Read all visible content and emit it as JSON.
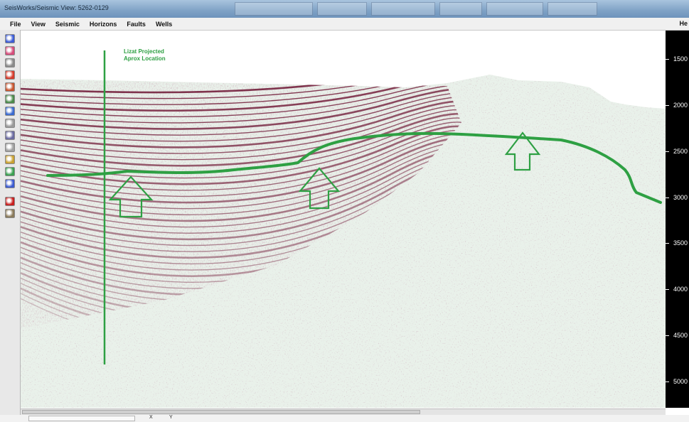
{
  "window": {
    "title": "SeisWorks/Seismic View: 5262-0129"
  },
  "menu": {
    "items": [
      "File",
      "View",
      "Seismic",
      "Horizons",
      "Faults",
      "Wells"
    ],
    "help": "He"
  },
  "toolbar": {
    "tools": [
      {
        "icon": "zoom-in-icon",
        "color": "#3b5bd6"
      },
      {
        "icon": "zoom-out-icon",
        "color": "#d64b7a"
      },
      {
        "icon": "pan-icon",
        "color": "#8a8a8a"
      },
      {
        "icon": "color-bar-icon",
        "color": "#d63b2b"
      },
      {
        "icon": "horizon-pick-icon",
        "color": "#c8542f"
      },
      {
        "icon": "grid-icon",
        "color": "#4a8a4a"
      },
      {
        "icon": "wiggle-icon",
        "color": "#3a6ad0"
      },
      {
        "icon": "trace-icon",
        "color": "#9a9a9a"
      },
      {
        "icon": "annotate-icon",
        "color": "#6a6aa0"
      },
      {
        "icon": "select-icon",
        "color": "#a0a0a0"
      },
      {
        "icon": "horizon-icon",
        "color": "#c8a030"
      },
      {
        "icon": "fault-icon",
        "color": "#3aa050"
      },
      {
        "icon": "well-icon",
        "color": "#3a5ad0"
      },
      {
        "icon": "record-icon",
        "color": "#c81e1e"
      },
      {
        "icon": "print-icon",
        "color": "#8a7a5a"
      }
    ]
  },
  "section": {
    "annotation_lines": [
      "Lizat Projected",
      "Aprox Location"
    ],
    "well_line_color": "#2ea043",
    "horizon_color": "#2ea043",
    "arrow_color": "#2ea043",
    "reflector_color": "#6b1230"
  },
  "depth_axis": {
    "labels": [
      "1500",
      "2000",
      "2500",
      "3000",
      "3500",
      "4000",
      "4500",
      "5000"
    ],
    "values": [
      1500,
      2000,
      2500,
      3000,
      3500,
      4000,
      4500,
      5000
    ]
  },
  "status": {
    "x_label": "X",
    "y_label": "Y"
  }
}
